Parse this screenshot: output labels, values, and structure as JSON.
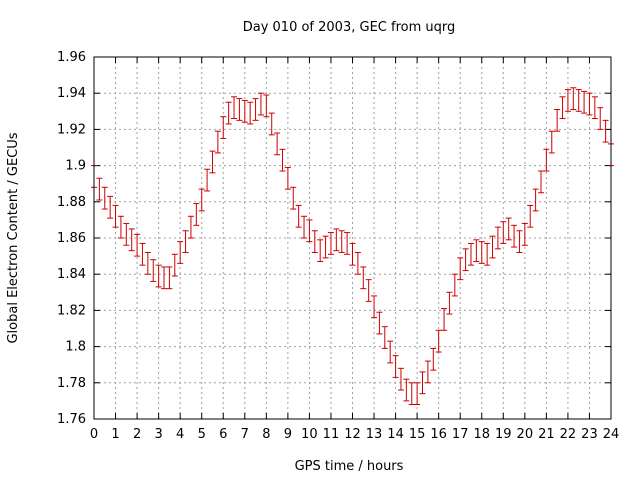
{
  "chart_data": {
    "type": "scatter",
    "title": "Day 010 of 2003, GEC from uqrg",
    "xlabel": "GPS time / hours",
    "ylabel": "Global Electron Content / GECUs",
    "xlim": [
      0,
      24
    ],
    "ylim": [
      1.76,
      1.96
    ],
    "xticks": [
      0,
      1,
      2,
      3,
      4,
      5,
      6,
      7,
      8,
      9,
      10,
      11,
      12,
      13,
      14,
      15,
      16,
      17,
      18,
      19,
      20,
      21,
      22,
      23,
      24
    ],
    "yticks": [
      1.76,
      1.78,
      1.8,
      1.82,
      1.84,
      1.86,
      1.88,
      1.9,
      1.92,
      1.94,
      1.96
    ],
    "ytick_labels": [
      "1.76",
      "1.78",
      "1.8",
      "1.82",
      "1.84",
      "1.86",
      "1.88",
      "1.9",
      "1.92",
      "1.94",
      "1.96"
    ],
    "grid": true,
    "error_bar": 0.006,
    "series_color": "#cc0000",
    "x": [
      0,
      0.25,
      0.5,
      0.75,
      1,
      1.25,
      1.5,
      1.75,
      2,
      2.25,
      2.5,
      2.75,
      3,
      3.25,
      3.5,
      3.75,
      4,
      4.25,
      4.5,
      4.75,
      5,
      5.25,
      5.5,
      5.75,
      6,
      6.25,
      6.5,
      6.75,
      7,
      7.25,
      7.5,
      7.75,
      8,
      8.25,
      8.5,
      8.75,
      9,
      9.25,
      9.5,
      9.75,
      10,
      10.25,
      10.5,
      10.75,
      11,
      11.25,
      11.5,
      11.75,
      12,
      12.25,
      12.5,
      12.75,
      13,
      13.25,
      13.5,
      13.75,
      14,
      14.25,
      14.5,
      14.75,
      15,
      15.25,
      15.5,
      15.75,
      16,
      16.25,
      16.5,
      16.75,
      17,
      17.25,
      17.5,
      17.75,
      18,
      18.25,
      18.5,
      18.75,
      19,
      19.25,
      19.5,
      19.75,
      20,
      20.25,
      20.5,
      20.75,
      21,
      21.25,
      21.5,
      21.75,
      22,
      22.25,
      22.5,
      22.75,
      23,
      23.25,
      23.5,
      23.75,
      24
    ],
    "y": [
      1.894,
      1.887,
      1.882,
      1.877,
      1.872,
      1.866,
      1.862,
      1.859,
      1.856,
      1.851,
      1.846,
      1.842,
      1.839,
      1.838,
      1.838,
      1.845,
      1.852,
      1.858,
      1.866,
      1.873,
      1.881,
      1.892,
      1.902,
      1.913,
      1.921,
      1.929,
      1.932,
      1.931,
      1.93,
      1.929,
      1.931,
      1.934,
      1.933,
      1.923,
      1.912,
      1.903,
      1.893,
      1.882,
      1.872,
      1.866,
      1.864,
      1.858,
      1.853,
      1.855,
      1.857,
      1.859,
      1.858,
      1.857,
      1.851,
      1.846,
      1.838,
      1.831,
      1.822,
      1.813,
      1.805,
      1.797,
      1.789,
      1.782,
      1.776,
      1.774,
      1.774,
      1.78,
      1.786,
      1.793,
      1.803,
      1.815,
      1.824,
      1.834,
      1.843,
      1.848,
      1.851,
      1.853,
      1.852,
      1.851,
      1.855,
      1.86,
      1.863,
      1.865,
      1.861,
      1.858,
      1.862,
      1.872,
      1.881,
      1.891,
      1.903,
      1.913,
      1.925,
      1.932,
      1.936,
      1.937,
      1.936,
      1.935,
      1.934,
      1.932,
      1.926,
      1.919,
      1.906
    ]
  }
}
